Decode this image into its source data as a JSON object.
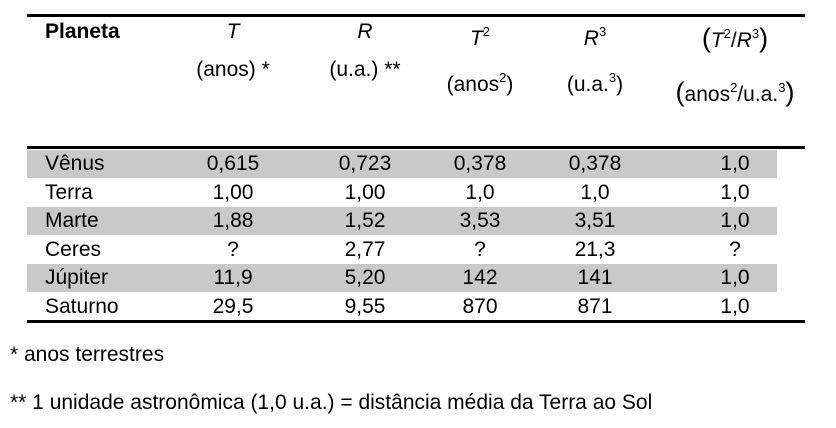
{
  "table": {
    "header": [
      [
        [
          {
            "text": "Planeta",
            "fmt": "b"
          }
        ]
      ],
      [
        [
          {
            "text": "T",
            "fmt": "i"
          }
        ],
        [
          {
            "text": "(anos) *"
          }
        ]
      ],
      [
        [
          {
            "text": "R",
            "fmt": "i"
          }
        ],
        [
          {
            "text": "(u.a.) **"
          }
        ]
      ],
      [
        [
          {
            "text": "T",
            "fmt": "i"
          },
          {
            "text": "2",
            "fmt": "sup"
          }
        ],
        [
          {
            "text": "(anos"
          },
          {
            "text": "2",
            "fmt": "sup"
          },
          {
            "text": ")"
          }
        ]
      ],
      [
        [
          {
            "text": "R",
            "fmt": "i"
          },
          {
            "text": "3",
            "fmt": "sup"
          }
        ],
        [
          {
            "text": "(u.a."
          },
          {
            "text": "3",
            "fmt": "sup"
          },
          {
            "text": ")"
          }
        ]
      ],
      [
        [
          {
            "text": "(",
            "fmt": "big"
          },
          {
            "text": "T",
            "fmt": "i"
          },
          {
            "text": "2",
            "fmt": "sup"
          },
          {
            "text": "/"
          },
          {
            "text": "R",
            "fmt": "i"
          },
          {
            "text": "3",
            "fmt": "sup"
          },
          {
            "text": ")",
            "fmt": "big"
          }
        ],
        [
          {
            "text": "(",
            "fmt": "big"
          },
          {
            "text": "anos"
          },
          {
            "text": "2",
            "fmt": "sup"
          },
          {
            "text": "/u.a."
          },
          {
            "text": "3",
            "fmt": "sup"
          },
          {
            "text": ")",
            "fmt": "big"
          }
        ]
      ]
    ],
    "rows": [
      [
        "Vênus",
        "0,615",
        "0,723",
        "0,378",
        "0,378",
        "1,0"
      ],
      [
        "Terra",
        "1,00",
        "1,00",
        "1,0",
        "1,0",
        "1,0"
      ],
      [
        "Marte",
        "1,88",
        "1,52",
        "3,53",
        "3,51",
        "1,0"
      ],
      [
        "Ceres",
        "?",
        "2,77",
        "?",
        "21,3",
        "?"
      ],
      [
        "Júpiter",
        "11,9",
        "5,20",
        "142",
        "141",
        "1,0"
      ],
      [
        "Saturno",
        "29,5",
        "9,55",
        "870",
        "871",
        "1,0"
      ]
    ]
  },
  "footnotes": [
    "* anos terrestres",
    "** 1 unidade astronômica (1,0 u.a.) = distância média da Terra ao Sol"
  ]
}
